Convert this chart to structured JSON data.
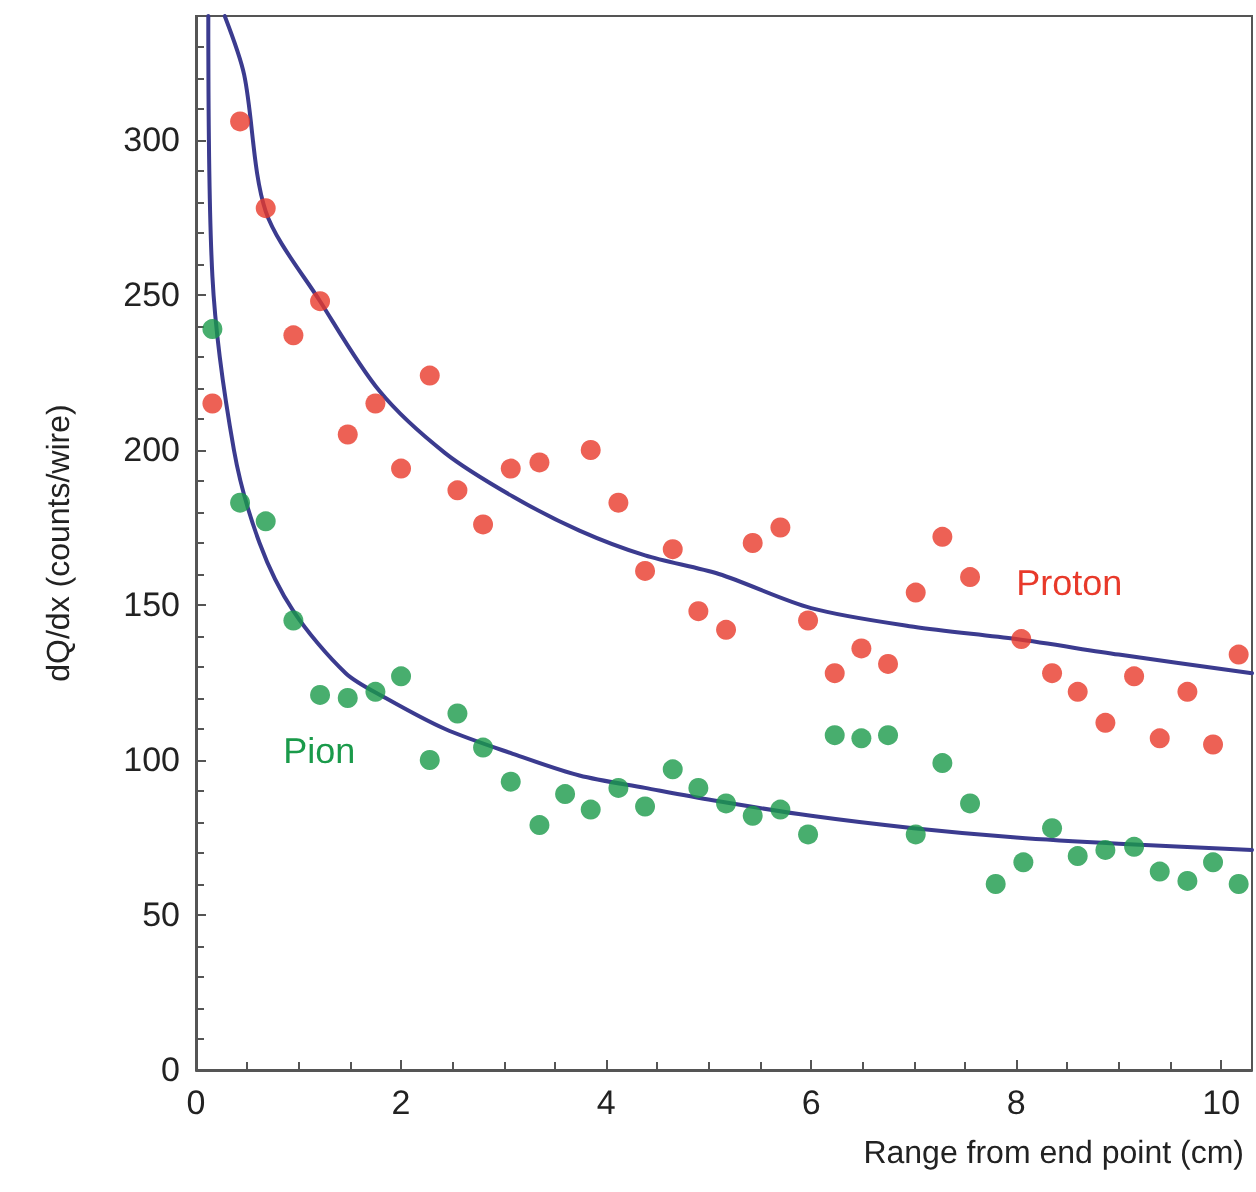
{
  "chart_data": {
    "type": "scatter",
    "xlabel": "Range from end point (cm)",
    "ylabel": "dQ/dx (counts/wire)",
    "xlim": [
      0,
      10.3
    ],
    "ylim": [
      0,
      340
    ],
    "xticks": [
      0,
      2,
      4,
      6,
      8,
      10
    ],
    "yticks": [
      0,
      50,
      100,
      150,
      200,
      250,
      300
    ],
    "grid": false,
    "legend": false,
    "marker": "circle",
    "series": [
      {
        "name": "Proton",
        "color": "#e8392a",
        "x": [
          0.16,
          0.43,
          0.68,
          0.95,
          1.21,
          1.48,
          1.75,
          2.0,
          2.28,
          2.55,
          2.8,
          3.07,
          3.35,
          3.85,
          4.12,
          4.38,
          4.65,
          4.9,
          5.17,
          5.43,
          5.7,
          5.97,
          6.23,
          6.49,
          6.75,
          7.02,
          7.28,
          7.55,
          8.05,
          8.35,
          8.6,
          8.87,
          9.15,
          9.4,
          9.67,
          9.92,
          10.17
        ],
        "values": [
          215,
          306,
          278,
          237,
          248,
          205,
          215,
          194,
          224,
          187,
          176,
          194,
          196,
          200,
          183,
          161,
          168,
          148,
          142,
          170,
          175,
          145,
          128,
          136,
          131,
          154,
          172,
          159,
          139,
          128,
          122,
          112,
          127,
          107,
          122,
          105,
          134
        ]
      },
      {
        "name": "Pion",
        "color": "#1a9a4a",
        "x": [
          0.16,
          0.43,
          0.68,
          0.95,
          1.21,
          1.48,
          1.75,
          2.0,
          2.28,
          2.55,
          2.8,
          3.07,
          3.35,
          3.6,
          3.85,
          4.12,
          4.38,
          4.65,
          4.9,
          5.17,
          5.43,
          5.7,
          5.97,
          6.23,
          6.49,
          6.75,
          7.02,
          7.28,
          7.55,
          7.8,
          8.07,
          8.35,
          8.6,
          8.87,
          9.15,
          9.4,
          9.67,
          9.92,
          10.17
        ],
        "values": [
          239,
          183,
          177,
          145,
          121,
          120,
          122,
          127,
          100,
          115,
          104,
          93,
          79,
          89,
          84,
          91,
          85,
          97,
          91,
          86,
          82,
          84,
          76,
          108,
          107,
          108,
          76,
          99,
          86,
          60,
          67,
          78,
          69,
          71,
          72,
          64,
          61,
          67,
          60
        ]
      },
      {
        "type": "line",
        "marker": "none",
        "color": "#3b3b8f",
        "x": [
          0.28,
          0.47,
          0.68,
          1.21,
          1.79,
          2.43,
          3.09,
          3.74,
          4.38,
          5.1,
          6.0,
          7.0,
          8.0,
          9.0,
          10.3
        ],
        "values": [
          340,
          321,
          277,
          248,
          219,
          199,
          185,
          174,
          166,
          160,
          149,
          143,
          139,
          134,
          128
        ]
      },
      {
        "type": "line",
        "marker": "none",
        "color": "#3b3b8f",
        "x": [
          0.12,
          0.16,
          0.37,
          0.62,
          0.95,
          1.46,
          1.85,
          2.43,
          3.09,
          3.74,
          4.38,
          5.04,
          6.0,
          7.0,
          8.0,
          9.0,
          10.3
        ],
        "values": [
          340,
          256,
          200,
          170,
          148,
          128,
          120,
          110,
          102,
          95,
          91,
          87,
          82,
          78,
          75,
          73,
          71
        ]
      }
    ]
  }
}
